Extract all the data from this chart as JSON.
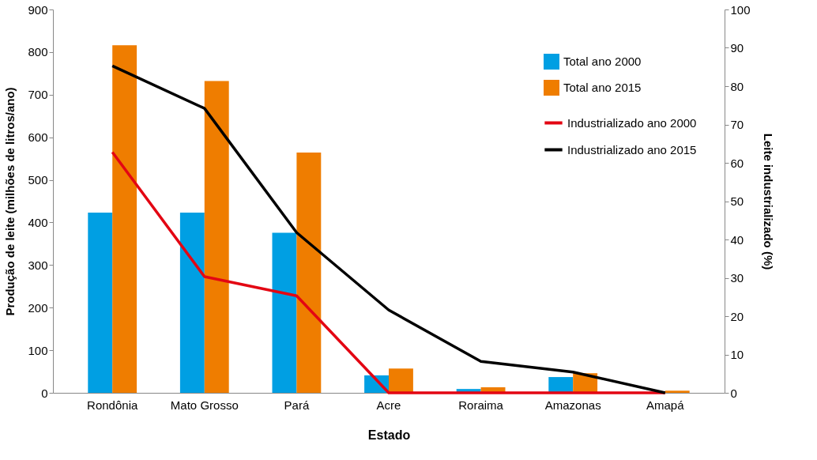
{
  "chart_data": {
    "type": "bar",
    "categories": [
      "Rondônia",
      "Mato Grosso",
      "Pará",
      "Acre",
      "Roraima",
      "Amazonas",
      "Amapá"
    ],
    "series": [
      {
        "name": "Total ano 2000",
        "color": "#009fe3",
        "values": [
          423,
          423,
          376,
          41,
          9,
          37,
          0
        ]
      },
      {
        "name": "Total ano 2015",
        "color": "#ef7d00",
        "values": [
          816,
          732,
          564,
          57,
          13,
          46,
          5
        ]
      },
      {
        "name": "Industrializado ano 2000",
        "type": "line",
        "axis": "y2",
        "color": "#e30613",
        "values": [
          62.8,
          30.3,
          25.3,
          0,
          0,
          0,
          0
        ]
      },
      {
        "name": "Industrializado ano 2015",
        "type": "line",
        "axis": "y2",
        "color": "#000000",
        "values": [
          85.3,
          74.2,
          41.8,
          21.6,
          8.2,
          5.4,
          0
        ]
      }
    ],
    "xlabel": "Estado",
    "ylabel": "Produção de leite (milhões de litros/ano)",
    "y2label": "Leite industrializado (%)",
    "ylim": [
      0,
      900
    ],
    "yticks": [
      0,
      100,
      200,
      300,
      400,
      500,
      600,
      700,
      800,
      900
    ],
    "y2lim": [
      0,
      100
    ],
    "y2ticks": [
      0,
      10,
      20,
      30,
      40,
      50,
      60,
      70,
      80,
      90,
      100
    ],
    "legend": "top right",
    "grid": false,
    "marker": "none",
    "line_style": "solid"
  }
}
